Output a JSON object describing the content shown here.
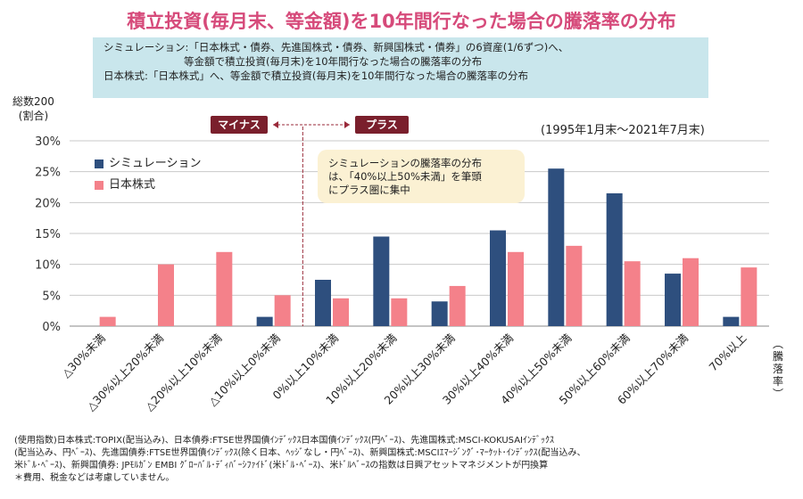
{
  "title": "積立投資(毎月末、等金額)を10年間行なった場合の騰落率の分布",
  "info": {
    "line1": "シミュレーション:「日本株式・債券、先進国株式・債券、新興国株式・債券」の6資産(1/6ずつ)へ、",
    "line2": "等金額で積立投資(毎月末)を10年間行なった場合の騰落率の分布",
    "line3": "日本株式:「日本株式」へ、等金額で積立投資(毎月末)を10年間行なった場合の騰落率の分布"
  },
  "tags": {
    "minus": "マイナス",
    "plus": "プラス"
  },
  "period": "(1995年1月末～2021年7月末)",
  "note": {
    "line1": "シミュレーションの騰落率の分布",
    "line2": "は、「40%以上50%未満」を筆頭",
    "line3": "にプラス圏に集中"
  },
  "footer": {
    "line1": "(使用指数)日本株式:TOPIX(配当込み)、日本債券:FTSE世界国債ｲﾝﾃﾞｯｸｽ日本国債ｲﾝﾃﾞｯｸｽ(円ﾍﾞｰｽ)、先進国株式:MSCI-KOKUSAIｲﾝﾃﾞｯｸｽ",
    "line2": "(配当込み、円ﾍﾞｰｽ)、先進国債券:FTSE世界国債ｲﾝﾃﾞｯｸｽ(除く日本、ﾍｯｼﾞなし・円ﾍﾞｰｽ)、新興国株式:MSCIｴﾏｰｼﾞﾝｸﾞ･ﾏｰｹｯﾄ･ｲﾝﾃﾞｯｸｽ(配当込み、",
    "line3": "米ﾄﾞﾙ･ﾍﾞｰｽ)、新興国債券: JPﾓﾙｶﾞﾝ EMBI ｸﾞﾛｰﾊﾞﾙ･ﾃﾞｨﾊﾞｰｼﾌｧｲﾄﾞ(米ﾄﾞﾙ･ﾍﾞｰｽ)、米ﾄﾞﾙﾍﾞｰｽの指数は日興アセットマネジメントが円換算",
    "line4": "＊費用、税金などは考慮していません。"
  },
  "colors": {
    "simulation": "#2e4f7e",
    "japan": "#f4818a",
    "grid": "#c9c9c9",
    "divider": "#9a2a3a"
  },
  "chart_data": {
    "type": "bar",
    "ylabel": "総数200\n(割合)",
    "xlabel": "(騰落率)",
    "ylim": [
      0,
      30
    ],
    "yticks": [
      "0%",
      "5%",
      "10%",
      "15%",
      "20%",
      "25%",
      "30%"
    ],
    "grid": true,
    "legend_position": "top-left",
    "categories": [
      "△30%未満",
      "△30%以上20%未満",
      "△20%以上10%未満",
      "△10%以上0%未満",
      "0%以上10%未満",
      "10%以上20%未満",
      "20%以上30%未満",
      "30%以上40%未満",
      "40%以上50%未満",
      "50%以上60%未満",
      "60%以上70%未満",
      "70%以上"
    ],
    "series": [
      {
        "name": "シミュレーション",
        "values": [
          0,
          0,
          0,
          1.5,
          7.5,
          14.5,
          4,
          15.5,
          25.5,
          21.5,
          8.5,
          1.5
        ]
      },
      {
        "name": "日本株式",
        "values": [
          1.5,
          10,
          12,
          5,
          4.5,
          4.5,
          6.5,
          12,
          13,
          10.5,
          11,
          9.5
        ]
      }
    ]
  }
}
